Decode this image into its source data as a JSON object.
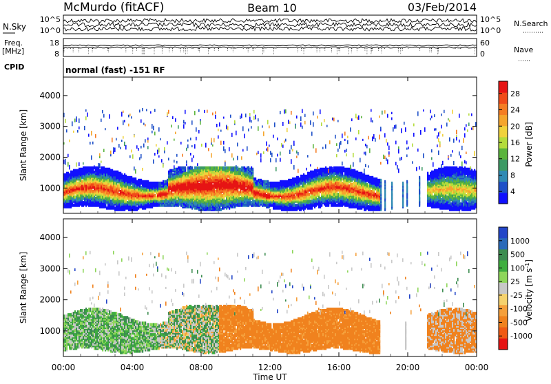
{
  "header": {
    "station": "McMurdo (fitACF)",
    "beam": "Beam 10",
    "date": "03/Feb/2014"
  },
  "top_panels": {
    "nsky_label": "N.Sky",
    "nsky_ticks": [
      "10^5",
      "10^0"
    ],
    "nsearch_label": "N.Search",
    "nsearch_ticks": [
      "10^5",
      "10^0"
    ],
    "freq_label": "Freq.",
    "freq_unit": "[MHz]",
    "freq_ticks": [
      "18",
      "8"
    ],
    "nave_label": "Nave",
    "nave_ticks": [
      "60",
      "0"
    ],
    "cpid_label": "CPID",
    "cpid_text": "normal (fast) -151 RF"
  },
  "chart_data": [
    {
      "type": "heatmap",
      "name": "power-panel",
      "ylabel": "Slant Range [km]",
      "y_ticks": [
        1000,
        2000,
        3000,
        4000
      ],
      "ylim": [
        180,
        4600
      ],
      "xlim": [
        0,
        24
      ],
      "colorbar": {
        "label": "Power [dB]",
        "ticks": [
          "4",
          "8",
          "12",
          "16",
          "20",
          "24",
          "28"
        ],
        "colors": [
          "#1010ff",
          "#1e50c8",
          "#2f8ab4",
          "#3c9a64",
          "#5ab43c",
          "#b4dc3c",
          "#f0d23c",
          "#f5a52d",
          "#f57d23",
          "#f04b19",
          "#e61414"
        ]
      }
    },
    {
      "type": "heatmap",
      "name": "velocity-panel",
      "ylabel": "Slant Range [km]",
      "y_ticks": [
        1000,
        2000,
        3000,
        4000
      ],
      "ylim": [
        180,
        4600
      ],
      "xlim": [
        0,
        24
      ],
      "colorbar": {
        "label": "Velocity [m s-1]",
        "label_main": "Velocity [m s",
        "label_sup": "-1",
        "label_close": "]",
        "ticks": [
          "1000",
          "500",
          "100",
          "25",
          "-25",
          "-100",
          "-500",
          "-1000"
        ],
        "colors": [
          "#2346c8",
          "#2a6ab9",
          "#3c8c50",
          "#3fae3f",
          "#8ed65a",
          "#c8c8c8",
          "#f5d26e",
          "#f5a03c",
          "#f0821e",
          "#f05a14",
          "#e61414"
        ]
      }
    }
  ],
  "x_axis": {
    "label": "Time UT",
    "ticks": [
      "00:00",
      "04:00",
      "08:00",
      "12:00",
      "16:00",
      "20:00",
      "00:00"
    ]
  }
}
